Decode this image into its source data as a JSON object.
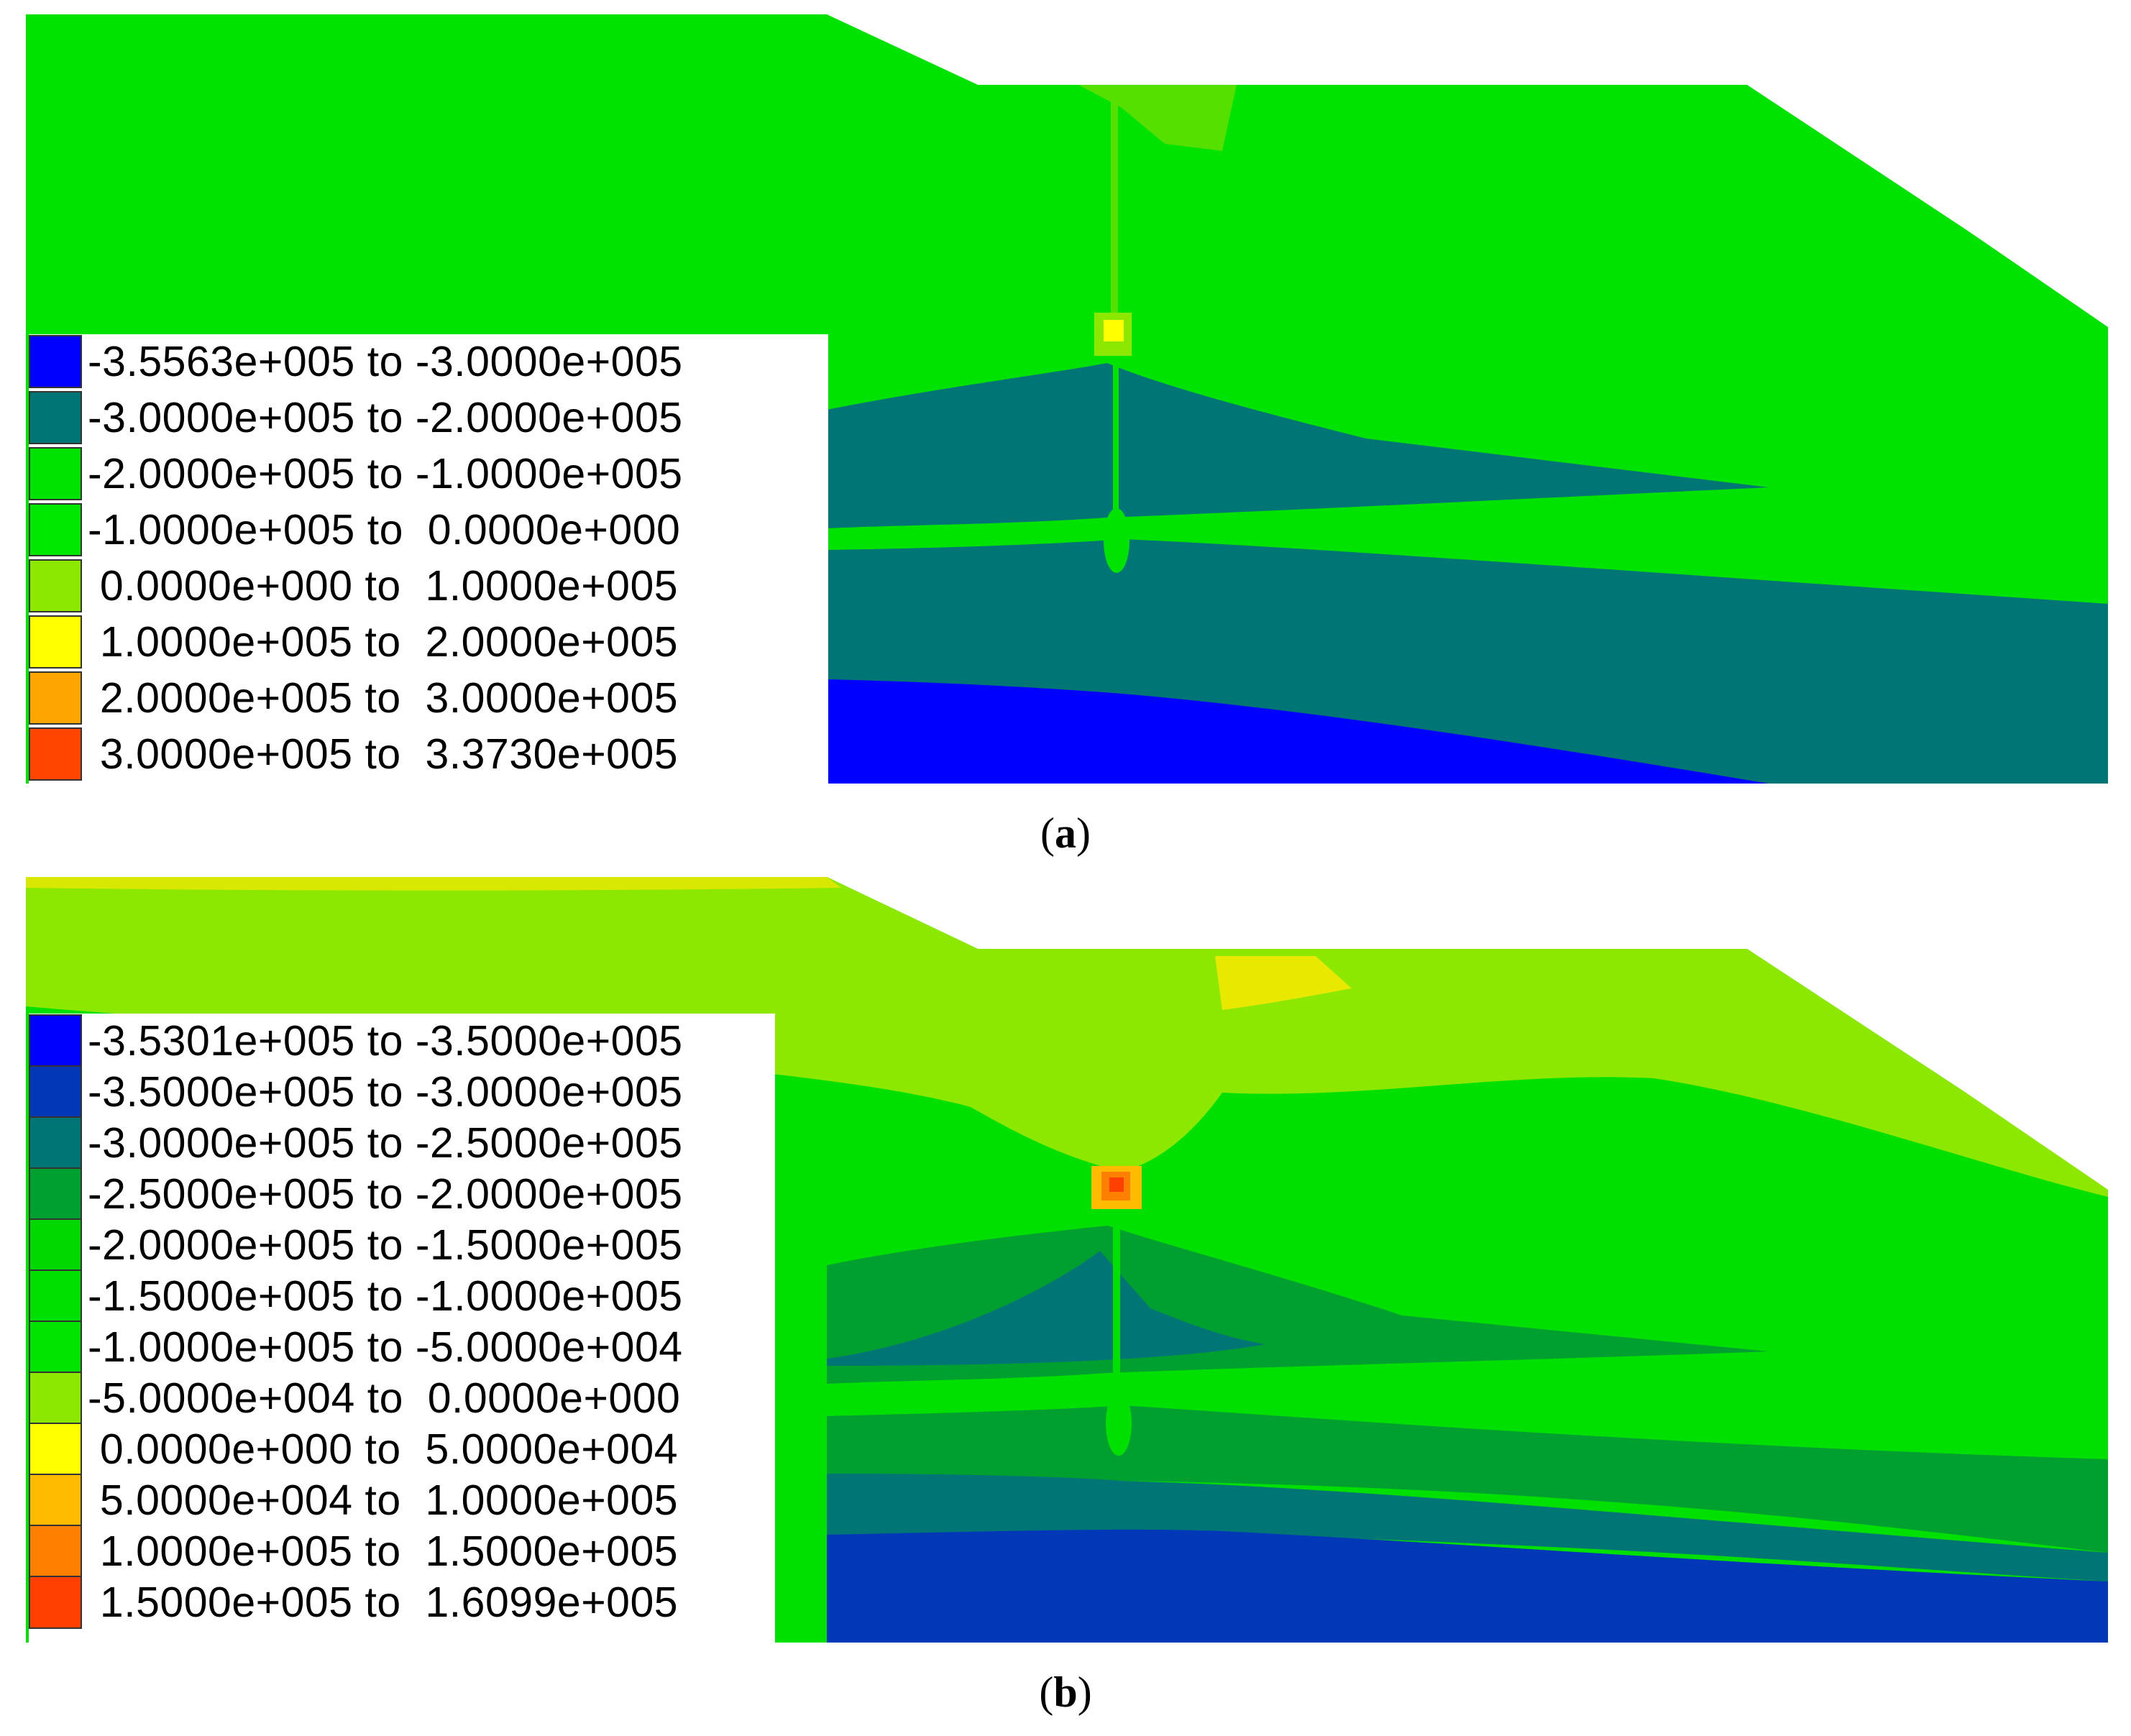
{
  "panels": [
    {
      "id": "a",
      "caption_letter": "a",
      "legend": [
        {
          "from": "-3.5563e+005",
          "to": "-3.0000e+005",
          "color": "#0000ff"
        },
        {
          "from": "-3.0000e+005",
          "to": "-2.0000e+005",
          "color": "#007575"
        },
        {
          "from": "-2.0000e+005",
          "to": "-1.0000e+005",
          "color": "#00e200"
        },
        {
          "from": "-1.0000e+005",
          "to": " 0.0000e+000",
          "color": "#00e800"
        },
        {
          "from": " 0.0000e+000",
          "to": " 1.0000e+005",
          "color": "#8de800"
        },
        {
          "from": " 1.0000e+005",
          "to": " 2.0000e+005",
          "color": "#ffff00"
        },
        {
          "from": " 2.0000e+005",
          "to": " 3.0000e+005",
          "color": "#ffa500"
        },
        {
          "from": " 3.0000e+005",
          "to": " 3.3730e+005",
          "color": "#ff4500"
        }
      ]
    },
    {
      "id": "b",
      "caption_letter": "b",
      "legend": [
        {
          "from": "-3.5301e+005",
          "to": "-3.5000e+005",
          "color": "#0000ff"
        },
        {
          "from": "-3.5000e+005",
          "to": "-3.0000e+005",
          "color": "#0038b8"
        },
        {
          "from": "-3.0000e+005",
          "to": "-2.5000e+005",
          "color": "#007575"
        },
        {
          "from": "-2.5000e+005",
          "to": "-2.0000e+005",
          "color": "#00a030"
        },
        {
          "from": "-2.0000e+005",
          "to": "-1.5000e+005",
          "color": "#00d800"
        },
        {
          "from": "-1.5000e+005",
          "to": "-1.0000e+005",
          "color": "#00e000"
        },
        {
          "from": "-1.0000e+005",
          "to": "-5.0000e+004",
          "color": "#00e400"
        },
        {
          "from": "-5.0000e+004",
          "to": " 0.0000e+000",
          "color": "#8de800"
        },
        {
          "from": " 0.0000e+000",
          "to": " 5.0000e+004",
          "color": "#ffff00"
        },
        {
          "from": " 5.0000e+004",
          "to": " 1.0000e+005",
          "color": "#ffbb00"
        },
        {
          "from": " 1.0000e+005",
          "to": " 1.5000e+005",
          "color": "#ff8000"
        },
        {
          "from": " 1.5000e+005",
          "to": " 1.6099e+005",
          "color": "#ff4000"
        }
      ]
    }
  ],
  "separator": " to "
}
